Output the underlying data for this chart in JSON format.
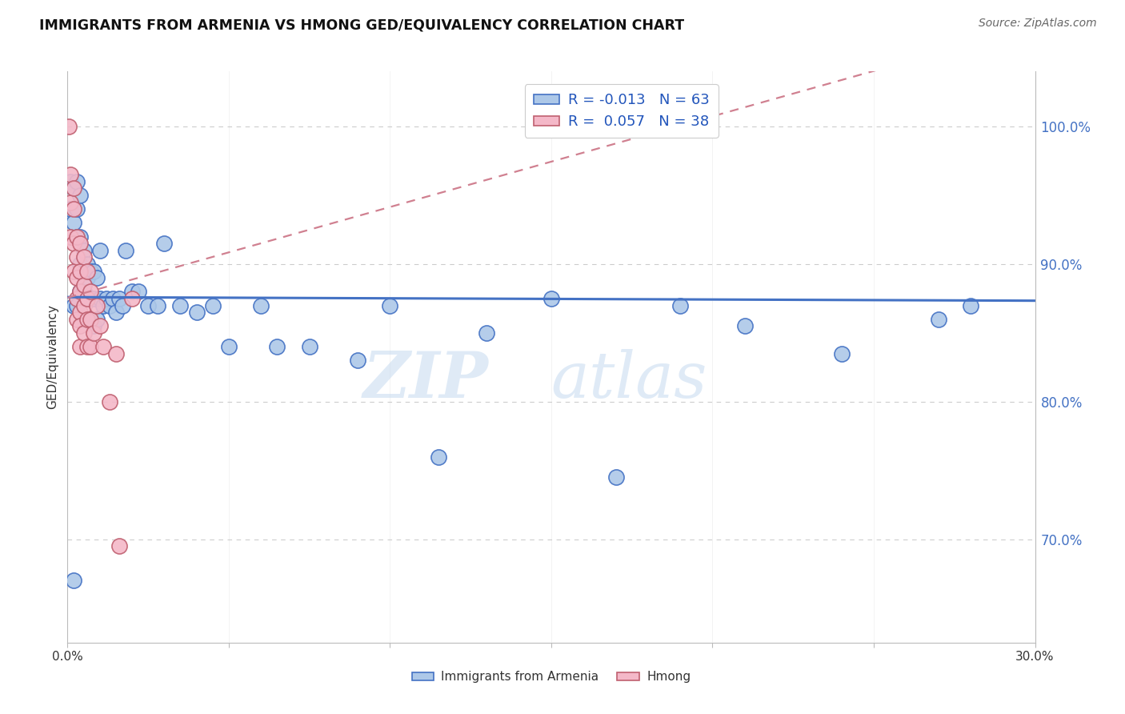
{
  "title": "IMMIGRANTS FROM ARMENIA VS HMONG GED/EQUIVALENCY CORRELATION CHART",
  "source": "Source: ZipAtlas.com",
  "ylabel": "GED/Equivalency",
  "ytick_values": [
    0.7,
    0.8,
    0.9,
    1.0
  ],
  "xmin": 0.0,
  "xmax": 0.3,
  "ymin": 0.625,
  "ymax": 1.04,
  "R_armenia": -0.013,
  "N_armenia": 63,
  "R_hmong": 0.057,
  "N_hmong": 38,
  "color_armenia": "#adc8e8",
  "color_hmong": "#f4b8c8",
  "line_color_armenia": "#4472c4",
  "line_color_hmong": "#d08090",
  "legend_text_color": "#2255bb",
  "armenia_x": [
    0.001,
    0.001,
    0.002,
    0.002,
    0.002,
    0.003,
    0.003,
    0.003,
    0.003,
    0.004,
    0.004,
    0.004,
    0.004,
    0.005,
    0.005,
    0.005,
    0.005,
    0.006,
    0.006,
    0.006,
    0.006,
    0.007,
    0.007,
    0.007,
    0.008,
    0.008,
    0.008,
    0.009,
    0.009,
    0.01,
    0.01,
    0.011,
    0.012,
    0.013,
    0.014,
    0.015,
    0.016,
    0.017,
    0.018,
    0.02,
    0.022,
    0.025,
    0.028,
    0.03,
    0.035,
    0.04,
    0.045,
    0.05,
    0.06,
    0.065,
    0.075,
    0.09,
    0.1,
    0.115,
    0.13,
    0.15,
    0.17,
    0.19,
    0.21,
    0.24,
    0.27,
    0.002,
    0.28
  ],
  "armenia_y": [
    0.96,
    0.94,
    0.955,
    0.93,
    0.87,
    0.96,
    0.94,
    0.92,
    0.87,
    0.95,
    0.92,
    0.9,
    0.88,
    0.91,
    0.895,
    0.88,
    0.86,
    0.9,
    0.89,
    0.875,
    0.86,
    0.895,
    0.875,
    0.86,
    0.895,
    0.875,
    0.855,
    0.89,
    0.86,
    0.91,
    0.875,
    0.87,
    0.875,
    0.87,
    0.875,
    0.865,
    0.875,
    0.87,
    0.91,
    0.88,
    0.88,
    0.87,
    0.87,
    0.915,
    0.87,
    0.865,
    0.87,
    0.84,
    0.87,
    0.84,
    0.84,
    0.83,
    0.87,
    0.76,
    0.85,
    0.875,
    0.745,
    0.87,
    0.855,
    0.835,
    0.86,
    0.67,
    0.87
  ],
  "hmong_x": [
    0.0005,
    0.001,
    0.001,
    0.001,
    0.002,
    0.002,
    0.002,
    0.002,
    0.003,
    0.003,
    0.003,
    0.003,
    0.003,
    0.004,
    0.004,
    0.004,
    0.004,
    0.004,
    0.004,
    0.005,
    0.005,
    0.005,
    0.005,
    0.006,
    0.006,
    0.006,
    0.006,
    0.007,
    0.007,
    0.007,
    0.008,
    0.009,
    0.01,
    0.011,
    0.013,
    0.015,
    0.016,
    0.02
  ],
  "hmong_y": [
    1.0,
    0.965,
    0.945,
    0.92,
    0.955,
    0.94,
    0.915,
    0.895,
    0.92,
    0.905,
    0.89,
    0.875,
    0.86,
    0.915,
    0.895,
    0.88,
    0.865,
    0.855,
    0.84,
    0.905,
    0.885,
    0.87,
    0.85,
    0.895,
    0.875,
    0.86,
    0.84,
    0.88,
    0.86,
    0.84,
    0.85,
    0.87,
    0.855,
    0.84,
    0.8,
    0.835,
    0.695,
    0.875
  ]
}
